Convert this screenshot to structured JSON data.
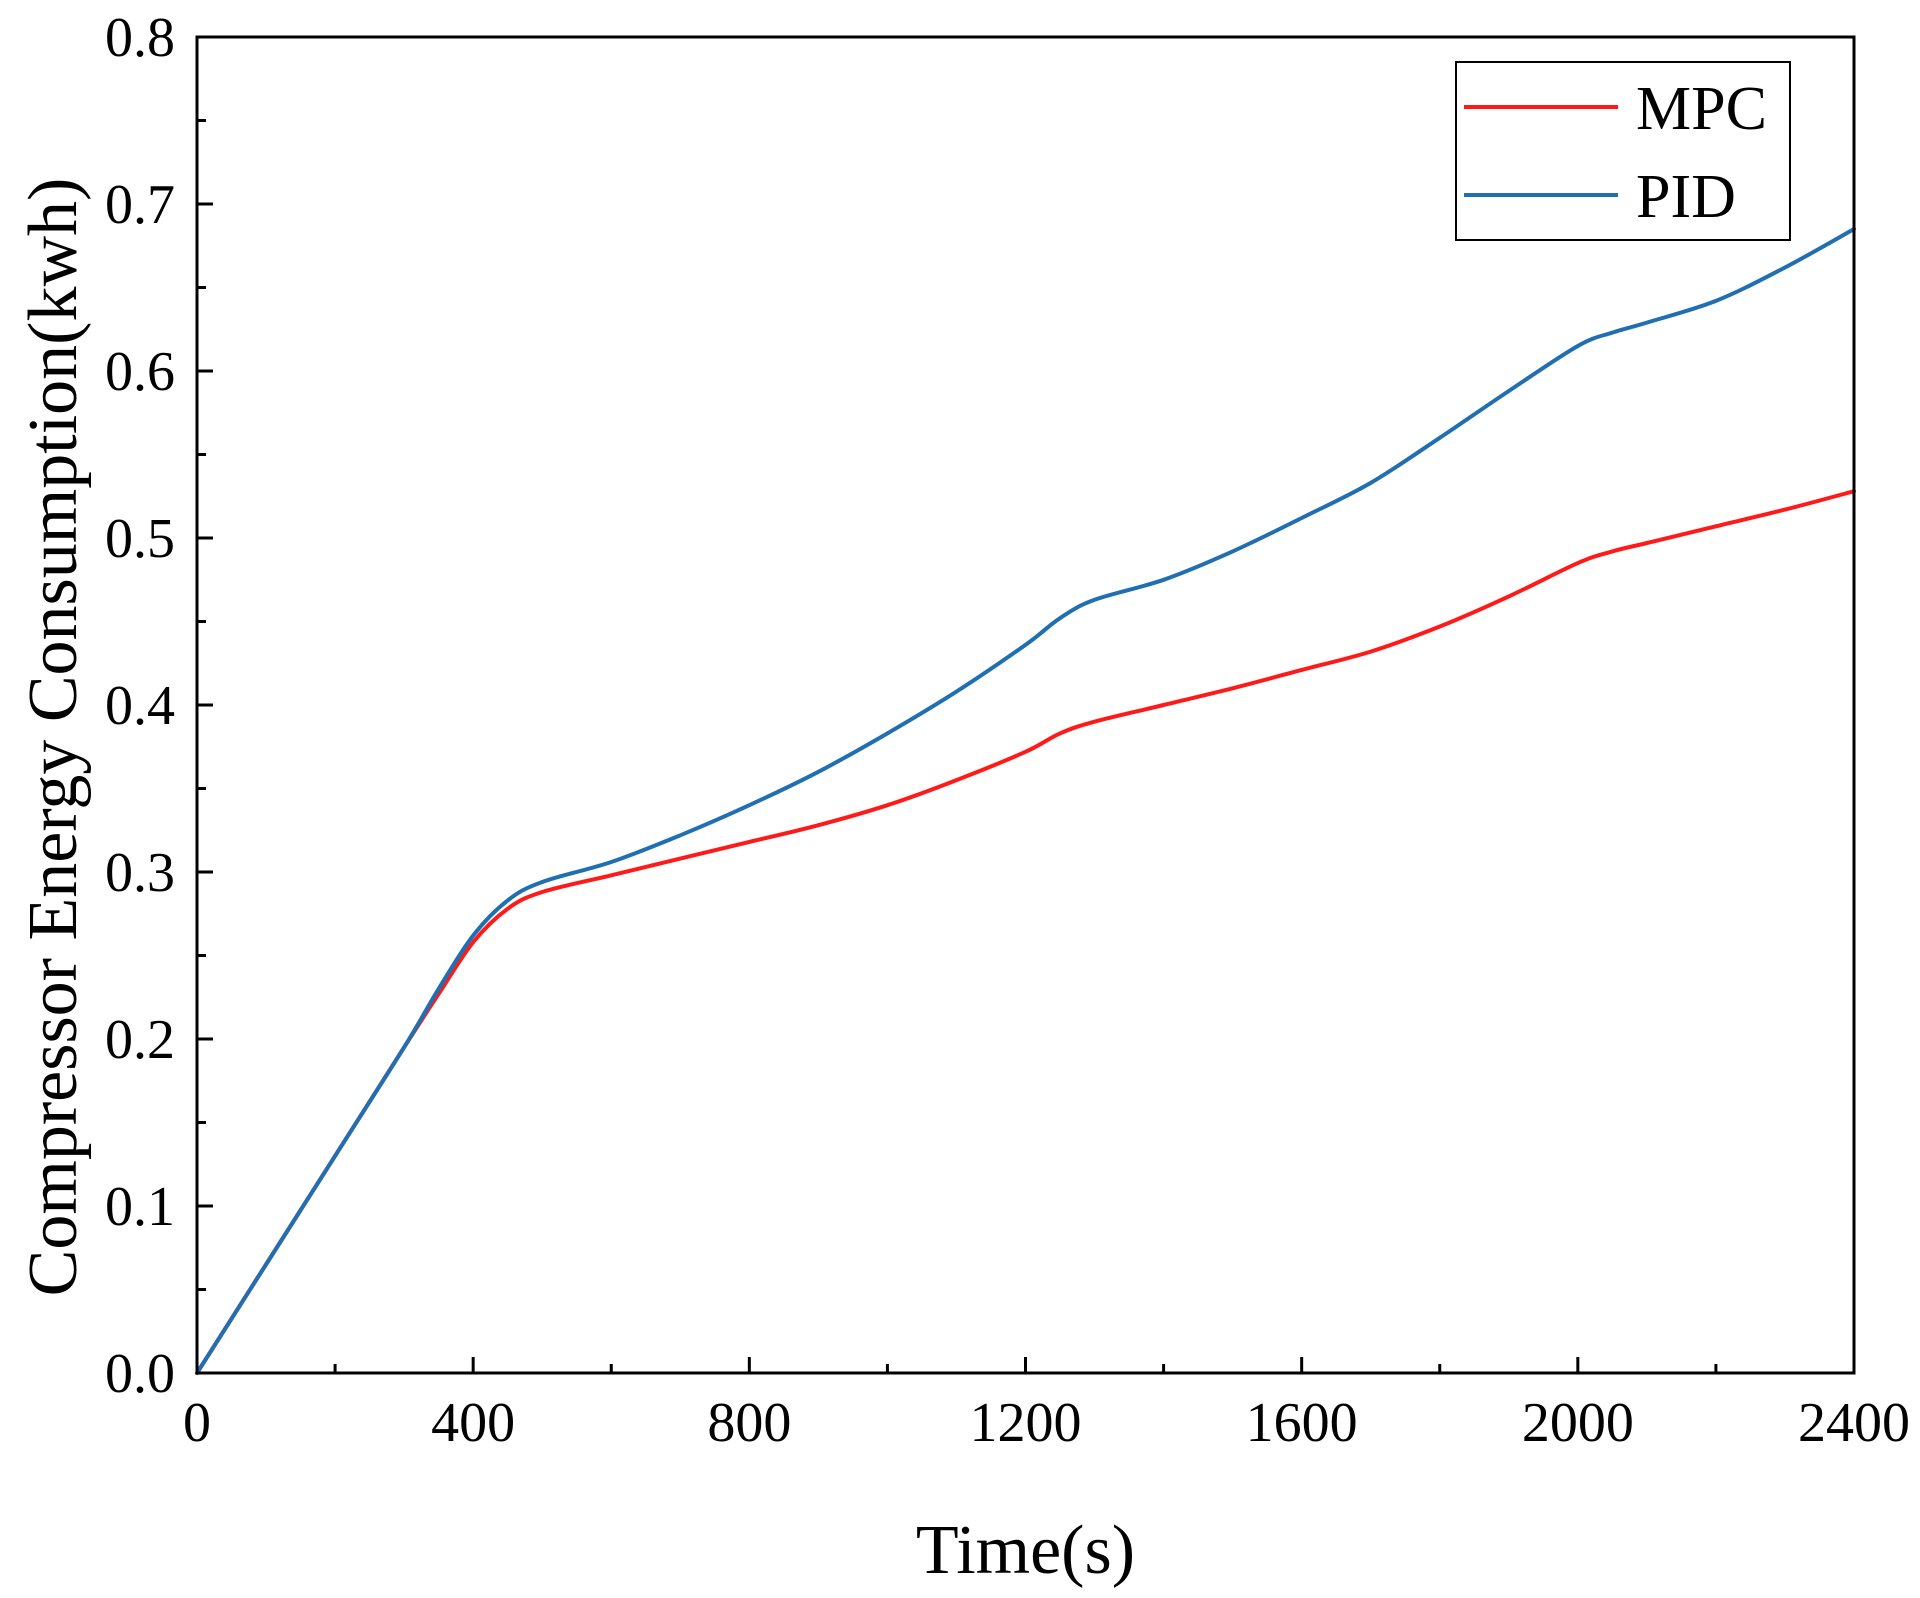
{
  "chart_data": {
    "type": "line",
    "title": "",
    "xlabel": "Time(s)",
    "ylabel": "Compressor Energy Consumption(kwh)",
    "xlim": [
      0,
      2400
    ],
    "ylim": [
      0.0,
      0.8
    ],
    "xticks": [
      0,
      400,
      800,
      1200,
      1600,
      2000,
      2400
    ],
    "xtick_labels": [
      "0",
      "400",
      "800",
      "1200",
      "1600",
      "2000",
      "2400"
    ],
    "yticks": [
      0.0,
      0.1,
      0.2,
      0.3,
      0.4,
      0.5,
      0.6,
      0.7,
      0.8
    ],
    "ytick_labels": [
      "0.0",
      "0.1",
      "0.2",
      "0.3",
      "0.4",
      "0.5",
      "0.6",
      "0.7",
      "0.8"
    ],
    "grid": false,
    "legend_position": "top-right",
    "series": [
      {
        "name": "MPC",
        "color": "#ff1a1a",
        "x": [
          0,
          100,
          200,
          300,
          350,
          400,
          450,
          500,
          600,
          700,
          800,
          900,
          1000,
          1100,
          1200,
          1250,
          1300,
          1400,
          1500,
          1600,
          1700,
          1800,
          1900,
          2000,
          2050,
          2100,
          2200,
          2300,
          2400
        ],
        "y": [
          0.0,
          0.065,
          0.13,
          0.195,
          0.227,
          0.258,
          0.278,
          0.288,
          0.298,
          0.308,
          0.318,
          0.328,
          0.34,
          0.355,
          0.372,
          0.383,
          0.39,
          0.4,
          0.41,
          0.421,
          0.432,
          0.447,
          0.465,
          0.485,
          0.492,
          0.497,
          0.507,
          0.517,
          0.528
        ]
      },
      {
        "name": "PID",
        "color": "#1f6fb2",
        "x": [
          0,
          100,
          200,
          300,
          350,
          400,
          450,
          500,
          600,
          700,
          800,
          900,
          1000,
          1100,
          1200,
          1250,
          1300,
          1400,
          1500,
          1600,
          1700,
          1800,
          1900,
          2000,
          2050,
          2100,
          2200,
          2300,
          2400
        ],
        "y": [
          0.0,
          0.065,
          0.13,
          0.195,
          0.23,
          0.262,
          0.283,
          0.294,
          0.306,
          0.322,
          0.34,
          0.36,
          0.383,
          0.408,
          0.436,
          0.452,
          0.463,
          0.475,
          0.492,
          0.512,
          0.533,
          0.56,
          0.588,
          0.615,
          0.623,
          0.629,
          0.642,
          0.662,
          0.685
        ]
      }
    ]
  }
}
